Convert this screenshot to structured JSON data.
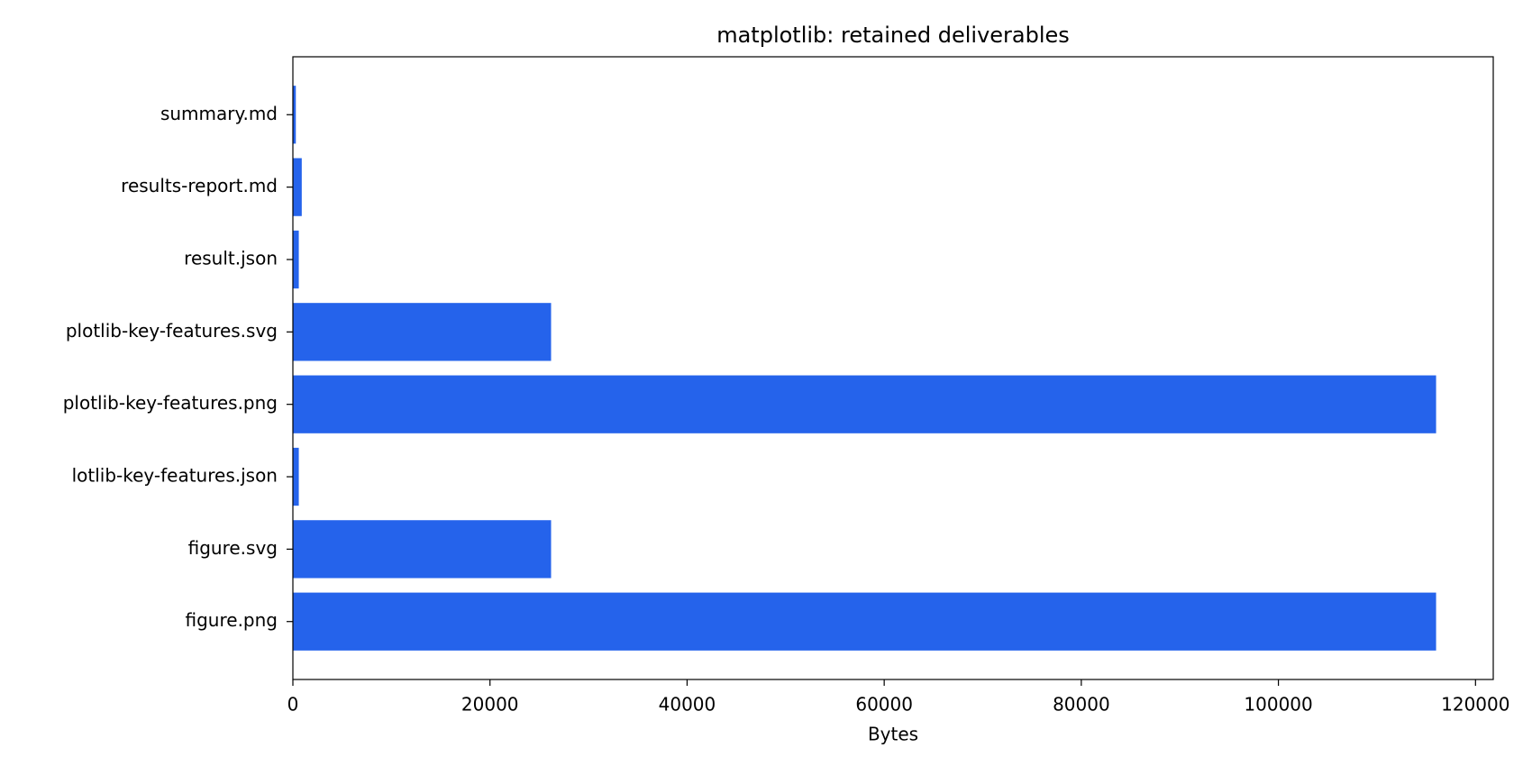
{
  "chart_data": {
    "type": "barh",
    "title": "matplotlib: retained deliverables",
    "xlabel": "Bytes",
    "categories": [
      "figure.png",
      "figure.svg",
      "lotlib-key-features.json",
      "plotlib-key-features.png",
      "plotlib-key-features.svg",
      "result.json",
      "results-report.md",
      "summary.md"
    ],
    "values": [
      116000,
      26200,
      600,
      116000,
      26200,
      600,
      900,
      300
    ],
    "color": "#2563eb",
    "xlim": [
      0,
      121800
    ],
    "xticks": [
      0,
      20000,
      40000,
      60000,
      80000,
      100000,
      120000
    ],
    "grid": false
  }
}
